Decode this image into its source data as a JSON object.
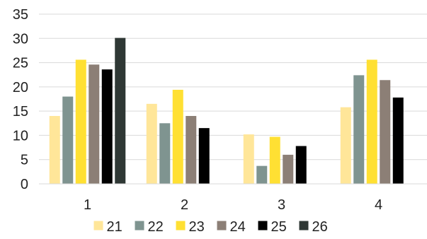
{
  "chart_data": {
    "type": "bar",
    "title": "",
    "xlabel": "",
    "ylabel": "",
    "categories": [
      "1",
      "2",
      "3",
      "4"
    ],
    "ylim": [
      0,
      35
    ],
    "yticks": [
      0,
      5,
      10,
      15,
      20,
      25,
      30,
      35
    ],
    "grid": true,
    "legend": "bottom",
    "series": [
      {
        "name": "21",
        "color": "#FFE699",
        "values": [
          14,
          16.5,
          10.2,
          15.8
        ]
      },
      {
        "name": "22",
        "color": "#7F9490",
        "values": [
          18,
          12.5,
          3.7,
          22.4
        ]
      },
      {
        "name": "23",
        "color": "#FFE033",
        "values": [
          25.6,
          19.4,
          9.7,
          25.6
        ]
      },
      {
        "name": "24",
        "color": "#8C7F76",
        "values": [
          24.6,
          14,
          6,
          21.4
        ]
      },
      {
        "name": "25",
        "color": "#000000",
        "values": [
          23.6,
          11.5,
          7.8,
          17.8
        ]
      },
      {
        "name": "26",
        "color": "#2F3835",
        "values": [
          30.1,
          null,
          null,
          null
        ]
      }
    ]
  }
}
